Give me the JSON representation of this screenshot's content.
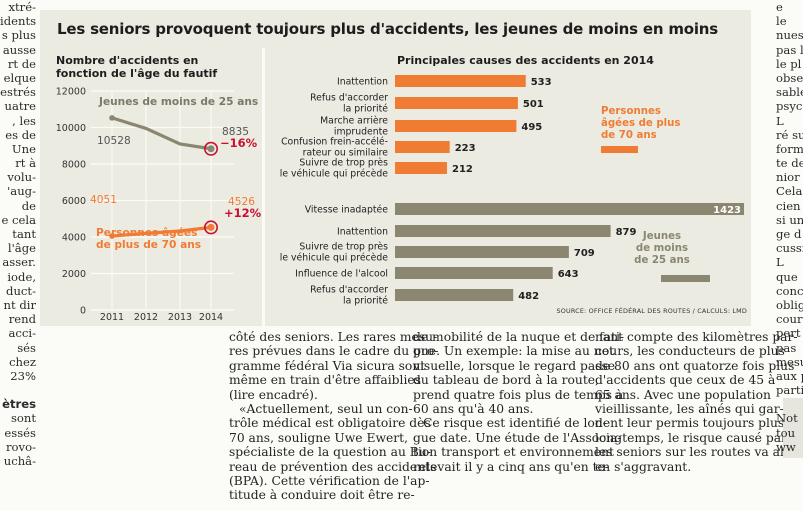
{
  "left_column": [
    "xtré-",
    "idents",
    "s plus",
    "ausse",
    "rt de",
    "elque",
    "estrés",
    "uatre",
    ", les",
    "es de",
    "Une",
    "rt à",
    "volu-",
    "'aug-",
    "de",
    "e cela",
    "tant",
    "l'âge",
    "asser.",
    "iode,",
    "duct-",
    "nt dir",
    "rend",
    "acci-",
    "sés",
    "chez",
    "23%",
    "",
    "ètres",
    "sont",
    "essés",
    "rovo-",
    "uchâ-"
  ],
  "right_column": [
    "e",
    "le",
    "nues",
    "pas l",
    "le pl",
    "obse",
    "sable",
    "psyc",
    "L",
    "ré su",
    "form",
    "te de",
    "nior",
    "Cela",
    "cien",
    "si un",
    "ge d",
    "cussi",
    "L",
    "que",
    "conc",
    "oblig",
    "cour",
    "pert",
    "pas",
    "mesu",
    "aux p",
    "parti",
    "",
    "Not",
    "tou",
    "ww"
  ],
  "infographic": {
    "title": "Les seniors provoquent toujours plus d'accidents, les jeunes de moins en moins",
    "line_chart": {
      "subtitle": [
        "Nombre d'accidents en",
        "fonction de l'âge du fautif"
      ],
      "y_ticks": [
        "12000",
        "10000",
        "8000",
        "6000",
        "4000",
        "2000",
        "0"
      ],
      "x_ticks": [
        "2011",
        "2012",
        "2013",
        "2014"
      ],
      "young_label": "Jeunes de moins de 25 ans",
      "young_start": "10528",
      "young_end": "8835",
      "young_change": "−16%",
      "senior_label": [
        "Personnes âgées",
        "de plus de 70 ans"
      ],
      "senior_start": "4051",
      "senior_end": "4526",
      "senior_change": "+12%"
    },
    "bar_chart": {
      "subtitle": "Principales causes des accidents en 2014",
      "senior_legend": [
        "Personnes",
        "âgées de plus",
        "de 70 ans"
      ],
      "young_legend": [
        "Jeunes",
        "de moins",
        "de 25 ans"
      ],
      "source": "SOURCE: OFFICE FÉDÉRAL DES ROUTES / CALCULS: LMD"
    },
    "colors": {
      "senior": "#f07c34",
      "young": "#8a8670",
      "panel": "#ecebe2",
      "change": "#c8102e"
    }
  },
  "chart_data": [
    {
      "type": "line",
      "title": "Nombre d'accidents en fonction de l'âge du fautif",
      "x": [
        2011,
        2012,
        2013,
        2014
      ],
      "ylim": [
        0,
        12000
      ],
      "grid": true,
      "series": [
        {
          "name": "Jeunes de moins de 25 ans",
          "values": [
            10528,
            9950,
            9100,
            8835
          ]
        },
        {
          "name": "Personnes âgées de plus de 70 ans",
          "values": [
            4051,
            4200,
            4330,
            4526
          ]
        }
      ]
    },
    {
      "type": "bar",
      "title": "Principales causes des accidents en 2014",
      "orientation": "horizontal",
      "series": [
        {
          "name": "Personnes âgées de plus de 70 ans",
          "categories": [
            [
              "Inattention"
            ],
            [
              "Refus d'accorder",
              "la priorité"
            ],
            [
              "Marche arrière",
              "imprudente"
            ],
            [
              "Confusion frein-accélé-",
              "rateur ou similaire"
            ],
            [
              "Suivre de trop près",
              "le véhicule qui précède"
            ]
          ],
          "values": [
            533,
            501,
            495,
            223,
            212
          ]
        },
        {
          "name": "Jeunes de moins de 25 ans",
          "categories": [
            [
              "Vitesse inadaptée"
            ],
            [
              "Inattention"
            ],
            [
              "Suivre de trop près",
              "le véhicule qui précède"
            ],
            [
              "Influence de l'alcool"
            ],
            [
              "Refus d'accorder",
              "la priorité"
            ]
          ],
          "values": [
            1423,
            879,
            709,
            643,
            482
          ]
        }
      ]
    }
  ],
  "article": {
    "col1": [
      "côté des seniors. Les rares mesu-",
      "res prévues dans le cadre du pro-",
      "gramme fédéral Via sicura sont",
      "même en train d'être affaiblies",
      "(lire encadré).",
      "«Actuellement, seul un con-",
      "trôle médical est obligatoire dès",
      "70 ans, souligne Uwe Ewert,",
      "spécialiste de la question au Bu-",
      "reau de prévention des accidents",
      "(BPA). Cette vérification de l'ap-",
      "titude à conduire doit être re-"
    ],
    "col2": [
      "de mobilité de la nuque et de fati-",
      "gue. Un exemple: la mise au net",
      "visuelle, lorsque le regard passe",
      "du tableau de bord à la route,",
      "prend quatre fois plus de temps à",
      "60 ans qu'à 40 ans.",
      "Ce risque est identifié de lon-",
      "gue date. Une étude de l'Associa-",
      "tion transport et environnement",
      "relevait il y a cinq ans qu'en te-"
    ],
    "col3": [
      "nant compte des kilomètres par-",
      "cours, les conducteurs de plus",
      "de 80 ans ont quatorze fois plus",
      "d'accidents que ceux de 45 à",
      "65 ans. Avec une population",
      "vieillissante, les aînés qui gar-",
      "dent leur permis toujours plus",
      "longtemps, le risque causé par",
      "les seniors sur les routes va aller",
      "en s'aggravant."
    ]
  }
}
